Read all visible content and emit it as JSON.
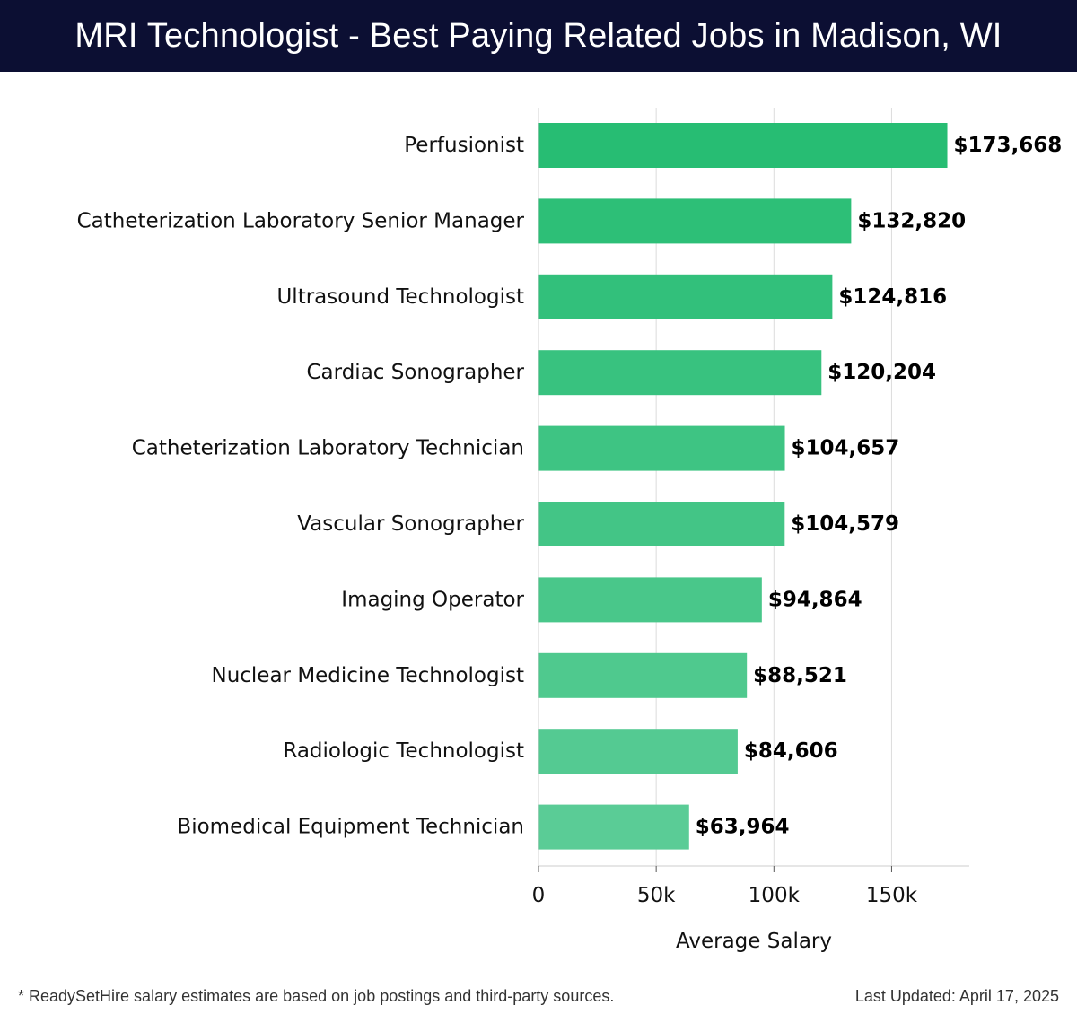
{
  "header": {
    "title": "MRI Technologist - Best Paying Related Jobs in Madison, WI"
  },
  "chart_data": {
    "type": "bar",
    "orientation": "horizontal",
    "title": "MRI Technologist - Best Paying Related Jobs in Madison, WI",
    "xlabel": "Average Salary",
    "ylabel": "",
    "categories": [
      "Perfusionist",
      "Catheterization Laboratory Senior Manager",
      "Ultrasound Technologist",
      "Cardiac Sonographer",
      "Catheterization Laboratory Technician",
      "Vascular Sonographer",
      "Imaging Operator",
      "Nuclear Medicine Technologist",
      "Radiologic Technologist",
      "Biomedical Equipment Technician"
    ],
    "values": [
      173668,
      132820,
      124816,
      120204,
      104657,
      104579,
      94864,
      88521,
      84606,
      63964
    ],
    "value_labels": [
      "$173,668",
      "$132,820",
      "$124,816",
      "$120,204",
      "$104,657",
      "$104,579",
      "$94,864",
      "$88,521",
      "$84,606",
      "$63,964"
    ],
    "xticks": [
      0,
      50000,
      100000,
      150000
    ],
    "xtick_labels": [
      "0",
      "50k",
      "100k",
      "150k"
    ],
    "xlim": [
      0,
      183000
    ],
    "grid": true,
    "bar_color_range": [
      "#27bd73",
      "#5acc96"
    ]
  },
  "footer": {
    "note": "* ReadySetHire salary estimates are based on job postings and third-party sources.",
    "updated": "Last Updated: April 17, 2025"
  }
}
